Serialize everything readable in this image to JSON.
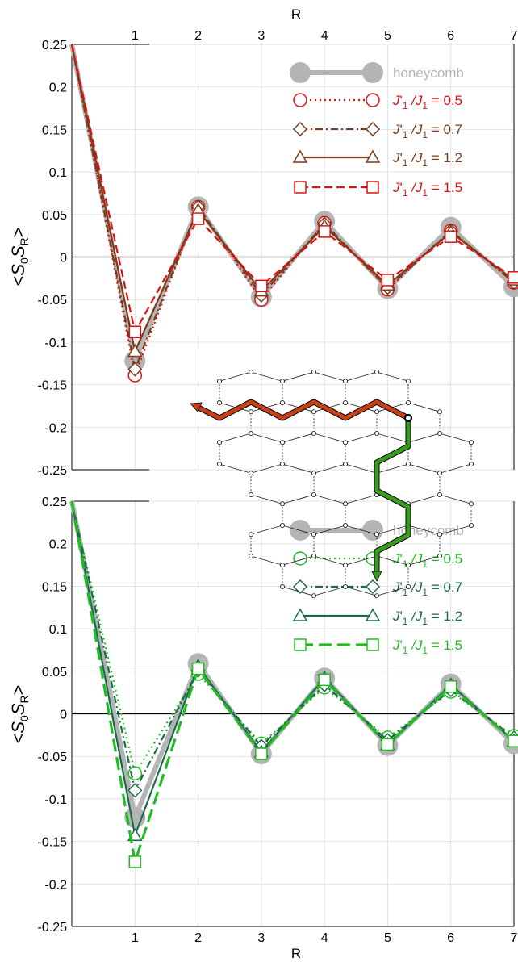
{
  "chart_data": [
    {
      "type": "line",
      "panel": "top",
      "xlabel": "R",
      "ylabel": "<S0SR>",
      "x_ticks": [
        1,
        2,
        3,
        4,
        5,
        6,
        7
      ],
      "xlim": [
        0,
        7
      ],
      "ylim": [
        -0.25,
        0.25
      ],
      "y_ticks": [
        "0.25",
        "0.2",
        "0.15",
        "0.1",
        "0.05",
        "0",
        "-0.05",
        "-0.1",
        "-0.15",
        "-0.2",
        "-0.25"
      ],
      "x": [
        0,
        1,
        2,
        3,
        4,
        5,
        6,
        7
      ],
      "series": [
        {
          "name": "honeycomb",
          "color": "#b4b4b4",
          "marker": "filled-circle",
          "line": "solid",
          "values": [
            0.25,
            -0.122,
            0.059,
            -0.047,
            0.042,
            -0.037,
            0.035,
            -0.035
          ]
        },
        {
          "name": "J1'/J1 = 0.5",
          "color": "#dd1111",
          "marker": "circle",
          "line": "dotted",
          "values": [
            0.25,
            -0.139,
            0.059,
            -0.05,
            0.04,
            -0.038,
            0.031,
            -0.03
          ]
        },
        {
          "name": "J1'/J1 = 0.7",
          "color": "#7a3c1a",
          "marker": "diamond",
          "line": "dashdot",
          "values": [
            0.25,
            -0.132,
            0.059,
            -0.045,
            0.039,
            -0.036,
            0.031,
            -0.03
          ]
        },
        {
          "name": "J1'/J1 = 1.2",
          "color": "#7a3c1a",
          "marker": "triangle",
          "line": "solid",
          "values": [
            0.25,
            -0.111,
            0.055,
            -0.04,
            0.036,
            -0.033,
            0.029,
            -0.027
          ]
        },
        {
          "name": "J1'/J1 = 1.5",
          "color": "#dd1111",
          "marker": "square",
          "line": "dashed",
          "values": [
            0.25,
            -0.088,
            0.045,
            -0.034,
            0.03,
            -0.027,
            0.024,
            -0.024
          ]
        }
      ]
    },
    {
      "type": "line",
      "panel": "bottom",
      "xlabel": "R",
      "ylabel": "<S0SR>",
      "x_ticks": [
        1,
        2,
        3,
        4,
        5,
        6,
        7
      ],
      "xlim": [
        0,
        7
      ],
      "ylim": [
        -0.25,
        0.25
      ],
      "y_ticks": [
        "0.25",
        "0.2",
        "0.15",
        "0.1",
        "0.05",
        "0",
        "-0.05",
        "-0.1",
        "-0.15",
        "-0.2",
        "-0.25"
      ],
      "x": [
        0,
        1,
        2,
        3,
        4,
        5,
        6,
        7
      ],
      "series": [
        {
          "name": "honeycomb",
          "color": "#b4b4b4",
          "marker": "filled-circle",
          "line": "solid",
          "values": [
            0.25,
            -0.122,
            0.059,
            -0.047,
            0.042,
            -0.037,
            0.035,
            -0.035
          ]
        },
        {
          "name": "J1'/J1 = 0.5",
          "color": "#22bb22",
          "marker": "circle",
          "line": "dotted",
          "values": [
            0.25,
            -0.07,
            0.047,
            -0.035,
            0.031,
            -0.028,
            0.026,
            -0.026
          ]
        },
        {
          "name": "J1'/J1 = 0.7",
          "color": "#1a6b4a",
          "marker": "diamond",
          "line": "dashdot",
          "values": [
            0.25,
            -0.09,
            0.051,
            -0.038,
            0.034,
            -0.031,
            0.028,
            -0.028
          ]
        },
        {
          "name": "J1'/J1 = 1.2",
          "color": "#1a6b4a",
          "marker": "triangle",
          "line": "solid",
          "values": [
            0.25,
            -0.143,
            0.056,
            -0.045,
            0.042,
            -0.036,
            0.034,
            -0.032
          ]
        },
        {
          "name": "J1'/J1 = 1.5",
          "color": "#22bb22",
          "marker": "square",
          "line": "longdashed",
          "values": [
            0.25,
            -0.174,
            0.053,
            -0.047,
            0.04,
            -0.036,
            0.032,
            -0.032
          ]
        }
      ]
    }
  ],
  "top_axis": {
    "label": "R"
  },
  "bottom_axis": {
    "label": "R"
  },
  "ylabel_parts": {
    "open": "<",
    "s0": "S",
    "sub0": "0",
    "sr": "S",
    "subR": "R",
    "close": ">"
  },
  "legend_label": {
    "ratio_prefix": "J",
    "prime": "'",
    "sub1": "1",
    "slash": " /J",
    "sub2": "1",
    "eq": " = "
  },
  "legend_values": [
    "0.5",
    "0.7",
    "1.2",
    "1.5"
  ],
  "legend_honeycomb": "honeycomb",
  "inset": {
    "description_colors": {
      "horizontal_path": "#c8401a",
      "vertical_path": "#3a9a20"
    }
  }
}
